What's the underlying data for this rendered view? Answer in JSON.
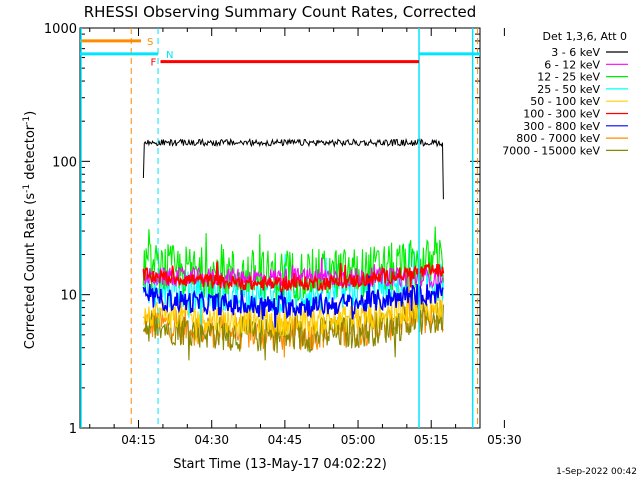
{
  "chart_data": {
    "type": "line",
    "title": "RHESSI Observing Summary Count Rates, Corrected",
    "xlabel": "Start Time (13-May-17 04:02:22)",
    "ylabel_main": "Corrected Count Rate (s",
    "ylabel_sup1": "-1",
    "ylabel_mid": " detector",
    "ylabel_sup2": "-1",
    "ylabel_end": ")",
    "y_scale": "log",
    "ylim": [
      1,
      1000
    ],
    "xlim_minutes_since_0400": [
      3,
      85
    ],
    "x_ticks": [
      {
        "label": "04:15",
        "min": 15
      },
      {
        "label": "04:30",
        "min": 30
      },
      {
        "label": "04:45",
        "min": 45
      },
      {
        "label": "05:00",
        "min": 60
      },
      {
        "label": "05:15",
        "min": 75
      },
      {
        "label": "05:30",
        "min": 90
      }
    ],
    "y_ticks": [
      {
        "label": "1",
        "value": 1
      },
      {
        "label": "10",
        "value": 10
      },
      {
        "label": "100",
        "value": 100
      },
      {
        "label": "1000",
        "value": 1000
      }
    ],
    "legend_header": "Det 1,3,6, Att 0",
    "legend_placement": "right",
    "series": [
      {
        "name": "3 - 6 keV",
        "color": "#000000",
        "base": 138,
        "noise": 0.025,
        "bump": 0.0
      },
      {
        "name": "6 - 12 keV",
        "color": "#ff00ff",
        "base": 13.5,
        "noise": 0.06,
        "bump": 0.0
      },
      {
        "name": "12 - 25 keV",
        "color": "#00ee00",
        "base": 16.0,
        "noise": 0.16,
        "bump": 0.12
      },
      {
        "name": "25 - 50 keV",
        "color": "#00ffff",
        "base": 11.5,
        "noise": 0.12,
        "bump": 0.12
      },
      {
        "name": "50 - 100 keV",
        "color": "#ffd000",
        "base": 7.5,
        "noise": 0.09,
        "bump": 0.16
      },
      {
        "name": "100 - 300 keV",
        "color": "#ff0000",
        "base": 14.0,
        "noise": 0.045,
        "bump": 0.14
      },
      {
        "name": "300 - 800 keV",
        "color": "#0000ff",
        "base": 9.5,
        "noise": 0.07,
        "bump": 0.14
      },
      {
        "name": "800 - 7000 keV",
        "color": "#ff8c00",
        "base": 6.2,
        "noise": 0.11,
        "bump": 0.18
      },
      {
        "name": "7000 - 15000 keV",
        "color": "#888800",
        "base": 6.0,
        "noise": 0.11,
        "bump": 0.18
      }
    ],
    "data_span_minutes": [
      16,
      77.5
    ],
    "annotations": {
      "saa": {
        "label": "S",
        "color": "#ff8c00",
        "y": 800,
        "x_range": [
          3,
          15.5
        ],
        "edge_lines": [
          13.5,
          84.5
        ]
      },
      "night": {
        "label": "N",
        "color": "#00e5ff",
        "y": 640,
        "segments": [
          [
            3,
            19
          ],
          [
            72.5,
            85
          ]
        ],
        "lines": [
          19,
          72.5,
          83.5
        ]
      },
      "flare": {
        "label": "F",
        "color": "#ff0000",
        "y": 560,
        "x_range": [
          19.5,
          72.5
        ]
      }
    },
    "footer_stamp": "1-Sep-2022 00:42"
  }
}
